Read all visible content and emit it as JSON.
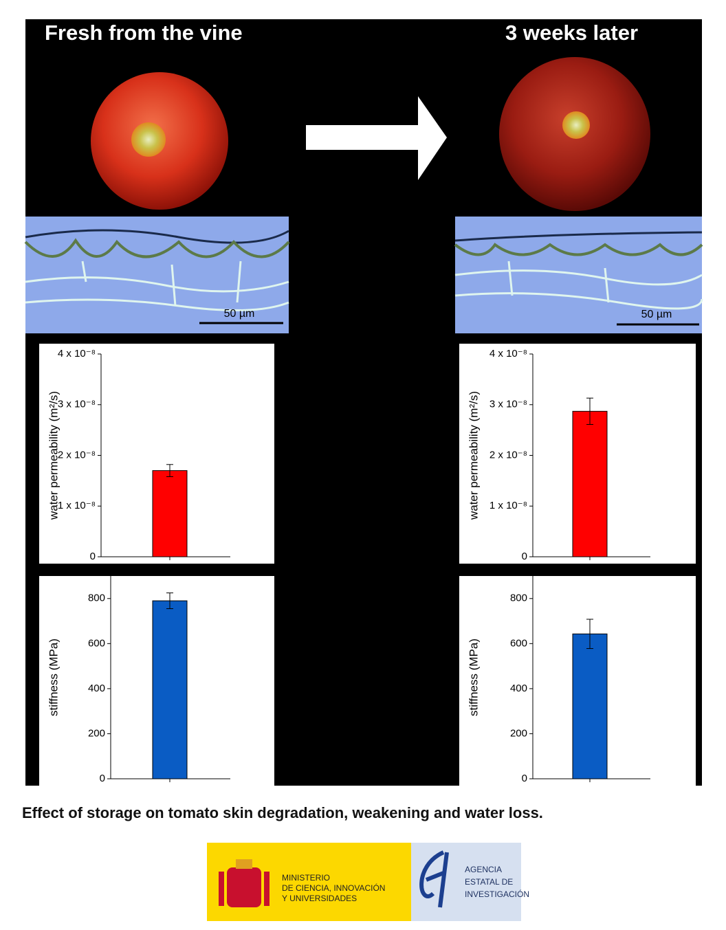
{
  "header": {
    "left_title": "Fresh from the vine",
    "right_title": "3 weeks later"
  },
  "scale_bars": {
    "left": "50 µm",
    "right": "50 µm"
  },
  "chart_data": [
    {
      "type": "bar",
      "ylabel": "water permeability (m²/s)",
      "values": [
        1.7e-08
      ],
      "errors": [
        1.2e-09
      ],
      "color": "#ff0000",
      "ylim": [
        0,
        4e-08
      ],
      "yticks": [
        0,
        {
          "value": 1e-08,
          "label": "1 x 10⁻⁸"
        },
        {
          "value": 2e-08,
          "label": "2 x 10⁻⁸"
        },
        {
          "value": 3e-08,
          "label": "3 x 10⁻⁸"
        },
        {
          "value": 4e-08,
          "label": "4 x 10⁻⁸"
        }
      ]
    },
    {
      "type": "bar",
      "ylabel": "water permeability (m²/s)",
      "values": [
        2.87e-08
      ],
      "errors": [
        2.6e-09
      ],
      "color": "#ff0000",
      "ylim": [
        0,
        4e-08
      ],
      "yticks": [
        0,
        {
          "value": 1e-08,
          "label": "1 x 10⁻⁸"
        },
        {
          "value": 2e-08,
          "label": "2 x 10⁻⁸"
        },
        {
          "value": 3e-08,
          "label": "3 x 10⁻⁸"
        },
        {
          "value": 4e-08,
          "label": "4 x 10⁻⁸"
        }
      ]
    },
    {
      "type": "bar",
      "ylabel": "stiffness (MPa)",
      "values": [
        790
      ],
      "errors": [
        35
      ],
      "color": "#0a5cc4",
      "ylim": [
        0,
        900
      ],
      "yticks": [
        0,
        200,
        400,
        600,
        800
      ]
    },
    {
      "type": "bar",
      "ylabel": "stiffness (MPa)",
      "values": [
        643
      ],
      "errors": [
        65
      ],
      "color": "#0a5cc4",
      "ylim": [
        0,
        900
      ],
      "yticks": [
        0,
        200,
        400,
        600,
        800
      ]
    }
  ],
  "caption": "Effect of storage on tomato skin degradation, weakening and water loss.",
  "logos": {
    "ministry": [
      "MINISTERIO",
      "DE CIENCIA, INNOVACIÓN",
      "Y UNIVERSIDADES"
    ],
    "agency": [
      "AGENCIA",
      "ESTATAL DE",
      "INVESTIGACIÓN"
    ]
  }
}
